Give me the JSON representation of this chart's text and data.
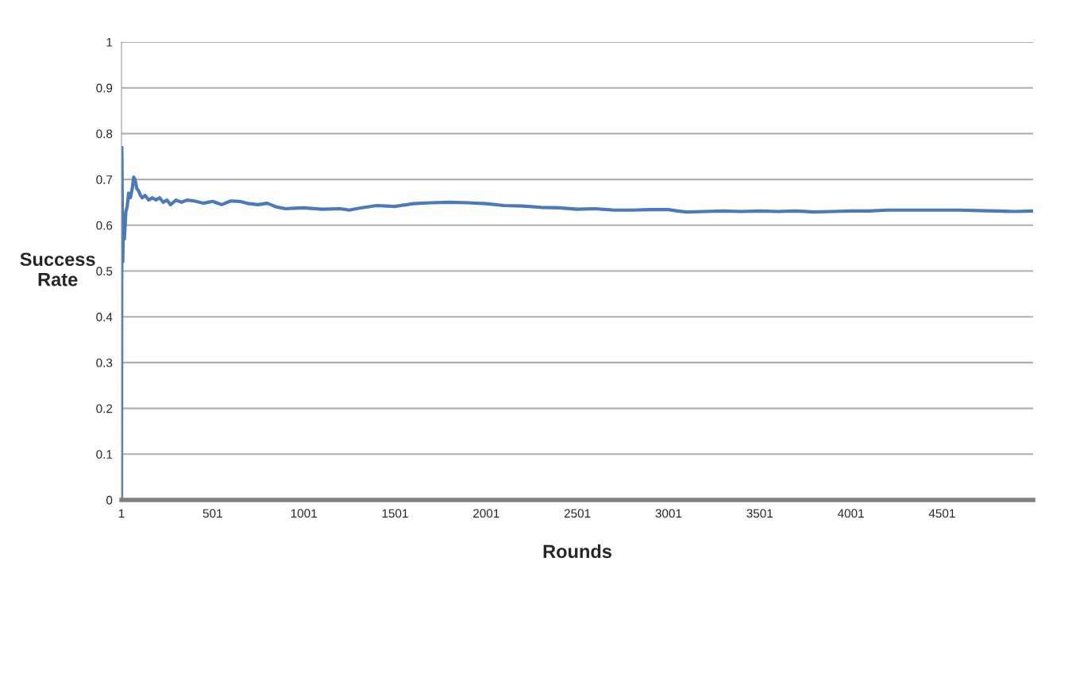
{
  "chart_data": {
    "type": "line",
    "xlabel": "Rounds",
    "ylabel": "Success\nRate",
    "x": [
      1,
      3,
      6,
      8,
      10,
      13,
      17,
      25,
      32,
      40,
      50,
      60,
      68,
      75,
      85,
      95,
      105,
      115,
      130,
      150,
      170,
      190,
      210,
      230,
      250,
      270,
      300,
      330,
      360,
      400,
      450,
      500,
      550,
      600,
      650,
      700,
      750,
      800,
      850,
      900,
      950,
      1000,
      1100,
      1200,
      1250,
      1300,
      1400,
      1500,
      1600,
      1700,
      1800,
      1900,
      2000,
      2100,
      2200,
      2300,
      2400,
      2500,
      2600,
      2700,
      2800,
      2900,
      3000,
      3050,
      3100,
      3200,
      3300,
      3400,
      3500,
      3600,
      3700,
      3800,
      3900,
      4000,
      4100,
      4200,
      4300,
      4400,
      4500,
      4600,
      4700,
      4800,
      4900,
      5000
    ],
    "series": [
      {
        "color": "#4a7ab8",
        "values": [
          0,
          0.77,
          0.6,
          0.52,
          0.58,
          0.62,
          0.57,
          0.63,
          0.64,
          0.67,
          0.66,
          0.68,
          0.705,
          0.7,
          0.68,
          0.675,
          0.665,
          0.66,
          0.665,
          0.655,
          0.66,
          0.655,
          0.66,
          0.65,
          0.655,
          0.645,
          0.655,
          0.65,
          0.655,
          0.653,
          0.648,
          0.652,
          0.645,
          0.653,
          0.652,
          0.647,
          0.645,
          0.648,
          0.64,
          0.636,
          0.637,
          0.638,
          0.635,
          0.636,
          0.633,
          0.637,
          0.643,
          0.641,
          0.647,
          0.649,
          0.65,
          0.649,
          0.647,
          0.643,
          0.642,
          0.639,
          0.638,
          0.635,
          0.636,
          0.633,
          0.633,
          0.634,
          0.634,
          0.631,
          0.629,
          0.63,
          0.631,
          0.63,
          0.631,
          0.63,
          0.631,
          0.629,
          0.63,
          0.631,
          0.631,
          0.633,
          0.633,
          0.633,
          0.633,
          0.633,
          0.632,
          0.631,
          0.63,
          0.631
        ]
      }
    ],
    "xlim": [
      1,
      5000
    ],
    "xticks": [
      1,
      501,
      1001,
      1501,
      2001,
      2501,
      3001,
      3501,
      4001,
      4501
    ],
    "ylim": [
      0,
      1
    ],
    "yticks": [
      0,
      0.1,
      0.2,
      0.3,
      0.4,
      0.5,
      0.6,
      0.7,
      0.8,
      0.9,
      1
    ],
    "grid": "y",
    "marker": "none",
    "line_style": "solid"
  }
}
